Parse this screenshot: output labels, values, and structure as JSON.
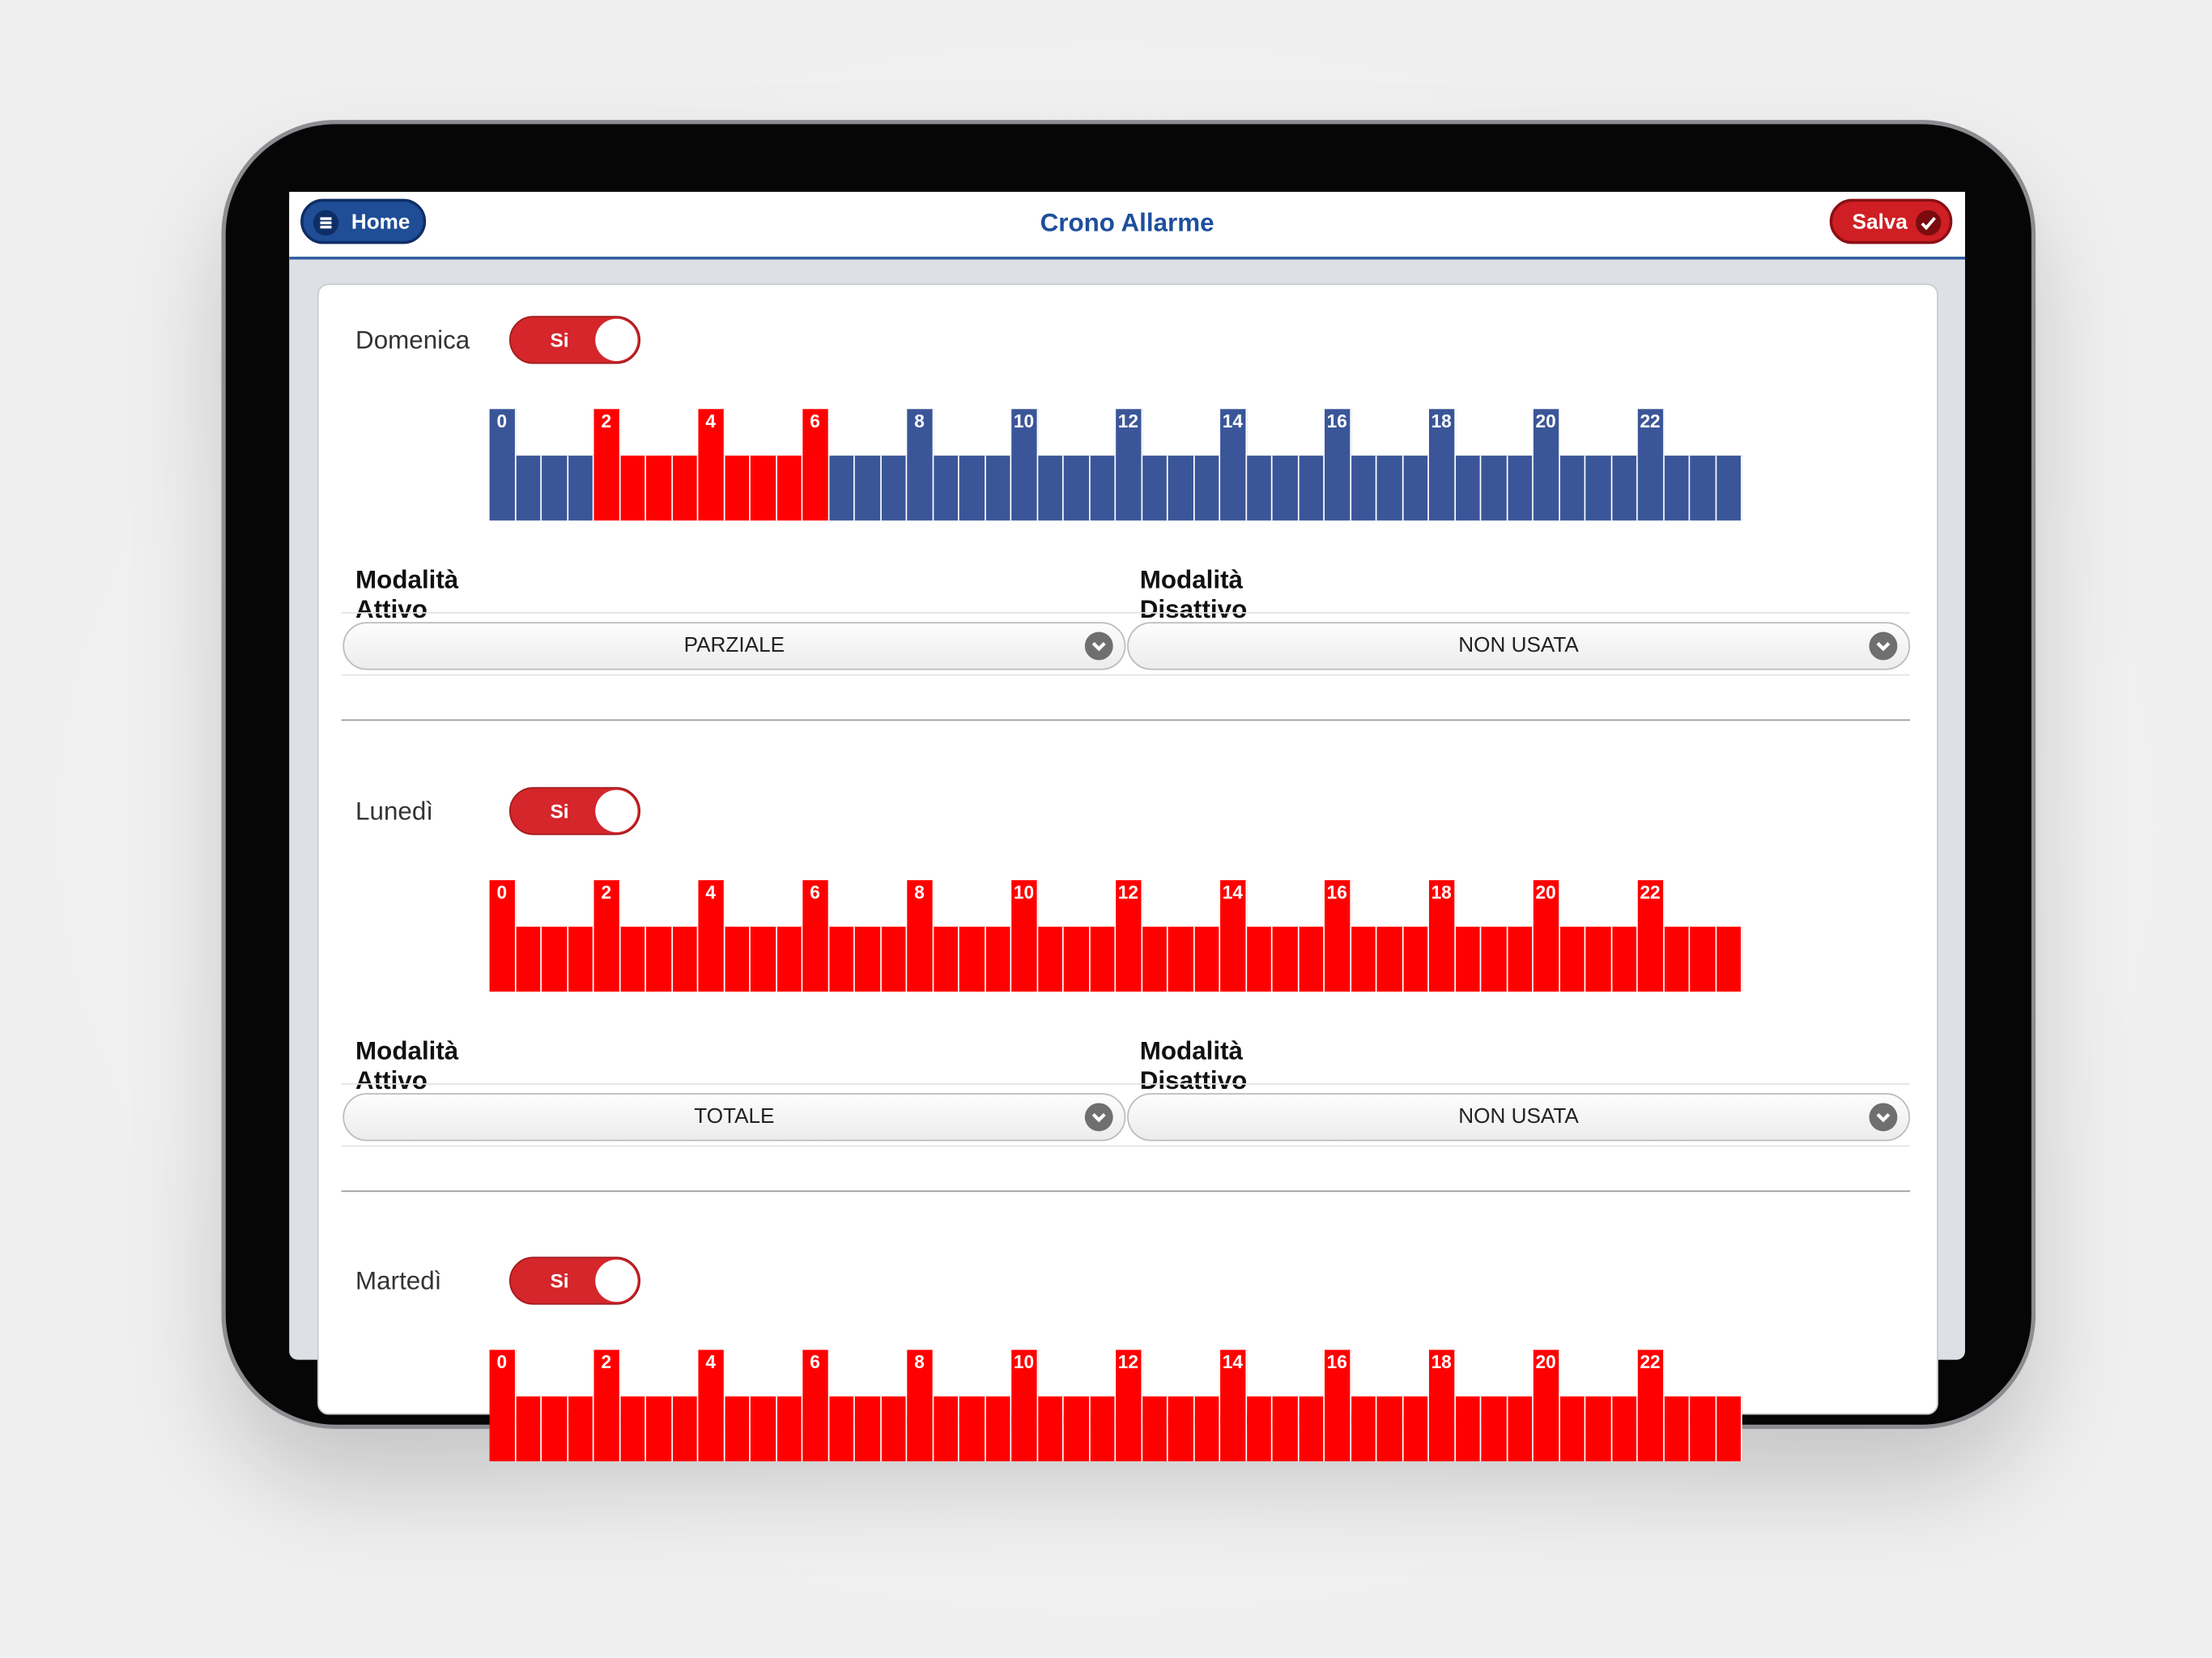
{
  "header": {
    "menu_button": "Home",
    "title": "Crono Allarme",
    "save_button": "Salva"
  },
  "hours": [
    "0",
    "2",
    "4",
    "6",
    "8",
    "10",
    "12",
    "14",
    "16",
    "18",
    "20",
    "22"
  ],
  "mode_on_label": "Modalità Attivo",
  "mode_off_label": "Modalità Disattivo",
  "days": [
    {
      "name": "Domenica",
      "toggle": "Si",
      "mode_on": "PARZIALE",
      "mode_off": "NON USATA",
      "slots": [
        0,
        0,
        0,
        0,
        1,
        1,
        1,
        1,
        1,
        1,
        1,
        1,
        1,
        0,
        0,
        0,
        0,
        0,
        0,
        0,
        0,
        0,
        0,
        0,
        0,
        0,
        0,
        0,
        0,
        0,
        0,
        0,
        0,
        0,
        0,
        0,
        0,
        0,
        0,
        0,
        0,
        0,
        0,
        0,
        0,
        0,
        0,
        0
      ]
    },
    {
      "name": "Lunedì",
      "toggle": "Si",
      "mode_on": "TOTALE",
      "mode_off": "NON USATA",
      "slots": [
        1,
        1,
        1,
        1,
        1,
        1,
        1,
        1,
        1,
        1,
        1,
        1,
        1,
        1,
        1,
        1,
        1,
        1,
        1,
        1,
        1,
        1,
        1,
        1,
        1,
        1,
        1,
        1,
        1,
        1,
        1,
        1,
        1,
        1,
        1,
        1,
        1,
        1,
        1,
        1,
        1,
        1,
        1,
        1,
        1,
        1,
        1,
        1
      ]
    },
    {
      "name": "Martedì",
      "toggle": "Si",
      "slots": [
        1,
        1,
        1,
        1,
        1,
        1,
        1,
        1,
        1,
        1,
        1,
        1,
        1,
        1,
        1,
        1,
        1,
        1,
        1,
        1,
        1,
        1,
        1,
        1,
        1,
        1,
        1,
        1,
        1,
        1,
        1,
        1,
        1,
        1,
        1,
        1,
        1,
        1,
        1,
        1,
        1,
        1,
        1,
        1,
        1,
        1,
        1,
        1
      ]
    }
  ]
}
